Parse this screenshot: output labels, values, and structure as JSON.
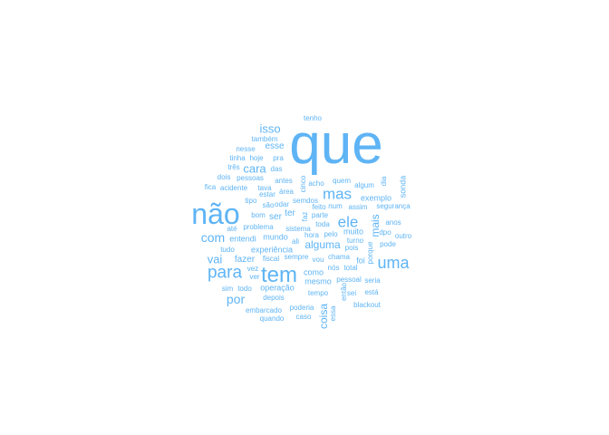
{
  "word_cloud": {
    "color": "#5eb4f5",
    "words": [
      "que",
      "não",
      "para",
      "tem",
      "uma",
      "mas",
      "ele",
      "com",
      "isso",
      "cara",
      "por",
      "vai",
      "mais",
      "alguma",
      "coisa",
      "esse",
      "fazer",
      "ser",
      "ter",
      "sonda",
      "exemplo",
      "entendi",
      "mundo",
      "operação",
      "experiência",
      "mesmo",
      "pessoal",
      "então",
      "também",
      "nesse",
      "hoje",
      "pra",
      "tinha",
      "três",
      "das",
      "dois",
      "pessoas",
      "antes",
      "fica",
      "acidente",
      "tava",
      "estar",
      "tipo",
      "são",
      "odar",
      "área",
      "semdos",
      "cinco",
      "acho",
      "quem",
      "algum",
      "dia",
      "tenho",
      "feito",
      "faz",
      "num",
      "assim",
      "segurança",
      "dpo",
      "bom",
      "parte",
      "toda",
      "anos",
      "até",
      "problema",
      "sistema",
      "hora",
      "pelo",
      "muito",
      "outro",
      "tudo",
      "ali",
      "turno",
      "pois",
      "porque",
      "pode",
      "fiscal",
      "sempre",
      "vou",
      "chama",
      "foi",
      "vez",
      "ver",
      "como",
      "nós",
      "sim",
      "todo",
      "depois",
      "tempo",
      "sei",
      "está",
      "seria",
      "total",
      "embarcado",
      "poderia",
      "blackout",
      "quando",
      "caso",
      "essa"
    ]
  }
}
